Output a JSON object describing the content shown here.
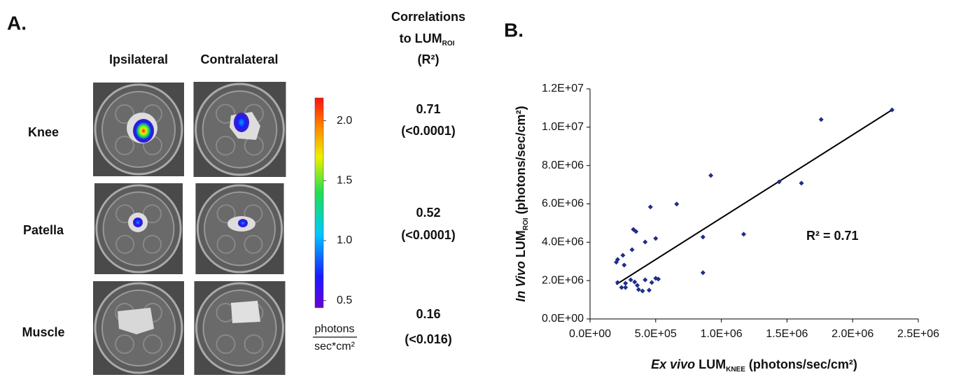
{
  "panel_a": {
    "label": "A.",
    "columns": [
      "Ipsilateral",
      "Contralateral"
    ],
    "rows": [
      "Knee",
      "Patella",
      "Muscle"
    ],
    "correlations_header": [
      "Correlations",
      "to LUM",
      "ROI",
      "(R²)"
    ],
    "correlations": [
      {
        "r2": 0.71,
        "p": "(<0.0001)"
      },
      {
        "r2": 0.52,
        "p": "(<0.0001)"
      },
      {
        "r2": 0.16,
        "p": "(<0.016)"
      }
    ],
    "colorbar": {
      "ylim": [
        0.44,
        2.19
      ],
      "yticks": [
        0.5,
        {
          "value": 1,
          "label": "1.0"
        },
        1.5,
        {
          "value": 2,
          "label": "2.0"
        }
      ],
      "unit_top": "photons",
      "unit_bottom": "sec*cm²"
    }
  },
  "chart_data": {
    "type": "scatter",
    "title": "B.",
    "xlabel": [
      "Ex vivo",
      " LUM",
      "KNEE",
      " (photons/sec/cm²)"
    ],
    "ylabel": [
      "In Vivo",
      " LUM",
      "ROI",
      " (photons/sec/cm²)"
    ],
    "annotation": "R² = 0.71",
    "xlim": [
      0,
      2500000
    ],
    "ylim": [
      0,
      12000000
    ],
    "xticks": [
      {
        "value": 0,
        "label": "0.0E+00"
      },
      {
        "value": 500000,
        "label": "5.0E+05"
      },
      {
        "value": 1000000,
        "label": "1.0E+06"
      },
      {
        "value": 1500000,
        "label": "1.5E+06"
      },
      {
        "value": 2000000,
        "label": "2.0E+06"
      },
      {
        "value": 2500000,
        "label": "2.5E+06"
      }
    ],
    "yticks": [
      {
        "value": 0,
        "label": "0.0E+00"
      },
      {
        "value": 2000000,
        "label": "2.0E+06"
      },
      {
        "value": 4000000,
        "label": "4.0E+06"
      },
      {
        "value": 6000000,
        "label": "6.0E+06"
      },
      {
        "value": 8000000,
        "label": "8.0E+06"
      },
      {
        "value": 10000000,
        "label": "1.0E+07"
      },
      {
        "value": 12000000,
        "label": "1.2E+07"
      }
    ],
    "series": [
      {
        "color": "#1f2d8a",
        "x": [
          2300000,
          1760000,
          1610000,
          1440000,
          1170000,
          920000,
          660000,
          860000,
          860000,
          460000,
          330000,
          350000,
          420000,
          500000,
          210000,
          200000,
          250000,
          260000,
          320000,
          210000,
          240000,
          270000,
          270000,
          310000,
          340000,
          360000,
          370000,
          400000,
          420000,
          450000,
          470000,
          500000,
          520000
        ],
        "y": [
          10900000,
          10400000,
          7080000,
          7150000,
          4420000,
          7480000,
          5990000,
          4270000,
          2410000,
          5840000,
          4670000,
          4560000,
          4010000,
          4200000,
          3100000,
          2960000,
          3320000,
          2810000,
          3610000,
          1900000,
          1640000,
          1860000,
          1640000,
          2040000,
          1930000,
          1750000,
          1530000,
          1460000,
          2040000,
          1500000,
          1900000,
          2120000,
          2080000
        ]
      }
    ],
    "trendline": {
      "color": "#000000",
      "x": [
        200000,
        2300000
      ],
      "y": [
        1800000,
        10900000
      ]
    }
  }
}
